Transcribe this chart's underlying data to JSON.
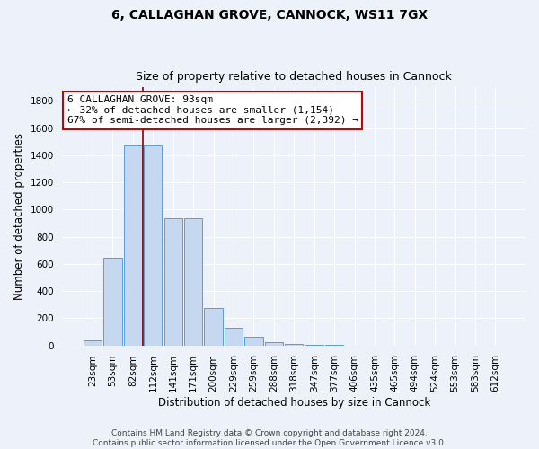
{
  "title_line1": "6, CALLAGHAN GROVE, CANNOCK, WS11 7GX",
  "title_line2": "Size of property relative to detached houses in Cannock",
  "xlabel": "Distribution of detached houses by size in Cannock",
  "ylabel": "Number of detached properties",
  "bar_labels": [
    "23sqm",
    "53sqm",
    "82sqm",
    "112sqm",
    "141sqm",
    "171sqm",
    "200sqm",
    "229sqm",
    "259sqm",
    "288sqm",
    "318sqm",
    "347sqm",
    "377sqm",
    "406sqm",
    "435sqm",
    "465sqm",
    "494sqm",
    "524sqm",
    "553sqm",
    "583sqm",
    "612sqm"
  ],
  "bar_values": [
    40,
    645,
    1470,
    1470,
    935,
    935,
    275,
    130,
    62,
    25,
    10,
    5,
    5,
    0,
    0,
    0,
    0,
    0,
    0,
    0,
    0
  ],
  "bar_color": "#c5d8f0",
  "bar_edge_color": "#5b9bd5",
  "ylim": [
    0,
    1900
  ],
  "yticks": [
    0,
    200,
    400,
    600,
    800,
    1000,
    1200,
    1400,
    1600,
    1800
  ],
  "vline_x": 2.5,
  "vline_color": "#8b0000",
  "annotation_line1": "6 CALLAGHAN GROVE: 93sqm",
  "annotation_line2": "← 32% of detached houses are smaller (1,154)",
  "annotation_line3": "67% of semi-detached houses are larger (2,392) →",
  "footer_line1": "Contains HM Land Registry data © Crown copyright and database right 2024.",
  "footer_line2": "Contains public sector information licensed under the Open Government Licence v3.0.",
  "background_color": "#edf2fa",
  "plot_bg_color": "#edf2fa",
  "grid_color": "#ffffff",
  "title_fontsize": 10,
  "subtitle_fontsize": 9,
  "axis_label_fontsize": 8.5,
  "tick_fontsize": 7.5,
  "footer_fontsize": 6.5,
  "annotation_fontsize": 8
}
